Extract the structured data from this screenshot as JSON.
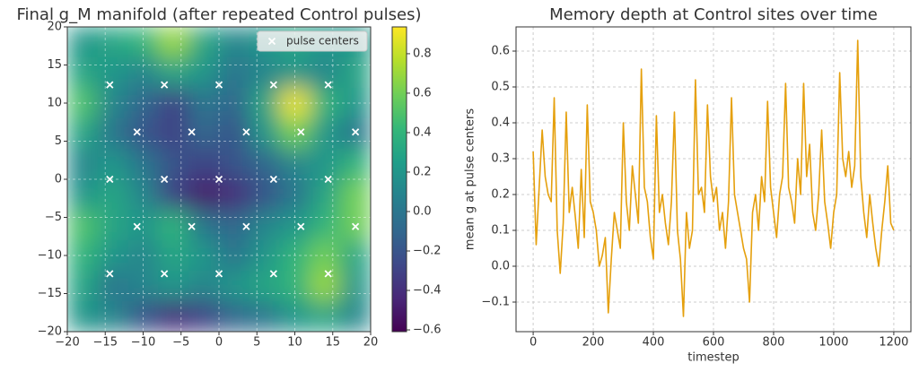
{
  "chart_data": [
    {
      "type": "heatmap",
      "title": "Final g_M manifold (after repeated Control pulses)",
      "z": [
        [
          0.2,
          0.3,
          0.4,
          0.7,
          0.3,
          0.1,
          0.2,
          0.3,
          0.2,
          0.2
        ],
        [
          0.3,
          0.2,
          0.1,
          0.3,
          0.2,
          0.0,
          0.1,
          0.2,
          0.1,
          0.3
        ],
        [
          0.5,
          0.1,
          -0.1,
          -0.3,
          0.0,
          -0.1,
          0.3,
          0.9,
          0.4,
          0.2
        ],
        [
          0.3,
          0.0,
          -0.2,
          -0.3,
          -0.1,
          -0.2,
          0.2,
          0.6,
          0.2,
          0.0
        ],
        [
          0.1,
          0.2,
          0.0,
          -0.2,
          -0.3,
          -0.2,
          -0.1,
          0.1,
          0.2,
          0.4
        ],
        [
          0.2,
          0.3,
          0.1,
          -0.3,
          -0.5,
          -0.4,
          -0.2,
          0.0,
          0.3,
          0.6
        ],
        [
          0.5,
          0.3,
          0.2,
          0.4,
          0.0,
          -0.1,
          0.1,
          0.2,
          0.4,
          0.6
        ],
        [
          0.4,
          0.2,
          0.1,
          0.3,
          0.2,
          0.0,
          0.2,
          0.4,
          0.6,
          0.3
        ],
        [
          0.3,
          0.0,
          0.1,
          0.2,
          0.1,
          0.2,
          0.3,
          0.4,
          0.7,
          0.2
        ],
        [
          0.2,
          0.1,
          -0.2,
          -0.4,
          -0.3,
          -0.1,
          0.0,
          0.2,
          0.3,
          0.1
        ]
      ],
      "xlim": [
        -20,
        20
      ],
      "ylim": [
        -20,
        20
      ],
      "xticks": [
        {
          "value": -20,
          "label": "−20"
        },
        {
          "value": -15,
          "label": "−15"
        },
        {
          "value": -10,
          "label": "−10"
        },
        {
          "value": -5,
          "label": "−5"
        },
        0,
        5,
        10,
        15,
        20
      ],
      "yticks": [
        {
          "value": -20,
          "label": "−20"
        },
        {
          "value": -15,
          "label": "−15"
        },
        {
          "value": -10,
          "label": "−10"
        },
        {
          "value": -5,
          "label": "−5"
        },
        0,
        5,
        10,
        15,
        20
      ],
      "grid": true,
      "colormap": "viridis",
      "clim": [
        -0.609,
        0.936
      ],
      "cticks": [
        {
          "value": -0.6,
          "label": "−0.6"
        },
        {
          "value": -0.4,
          "label": "−0.4"
        },
        {
          "value": -0.2,
          "label": "−0.2"
        },
        {
          "value": 0,
          "label": "0.0"
        },
        0.2,
        0.4,
        0.6,
        0.8
      ],
      "legend": "upper right",
      "series": [
        {
          "name": "pulse centers",
          "type": "scatter",
          "color": "#ffffff",
          "x": [
            -14.4,
            -7.2,
            0,
            7.2,
            14.4,
            -10.8,
            -3.6,
            3.6,
            10.8,
            18,
            -14.4,
            -7.2,
            0,
            7.2,
            14.4,
            -10.8,
            -3.6,
            3.6,
            10.8,
            18,
            -14.4,
            -7.2,
            0,
            7.2,
            14.4
          ],
          "y": [
            12.4,
            12.4,
            12.4,
            12.4,
            12.4,
            6.2,
            6.2,
            6.2,
            6.2,
            6.2,
            0,
            0,
            0,
            0,
            0,
            -6.2,
            -6.2,
            -6.2,
            -6.2,
            -6.2,
            -12.4,
            -12.4,
            -12.4,
            -12.4,
            -12.4
          ]
        }
      ]
    },
    {
      "type": "line",
      "title": "Memory depth at Control sites over time",
      "xlabel": "timestep",
      "ylabel": "mean g at pulse centers",
      "color": "#e5a00d",
      "x": [
        0,
        10,
        20,
        30,
        40,
        50,
        60,
        70,
        80,
        90,
        100,
        110,
        120,
        130,
        140,
        150,
        160,
        170,
        180,
        190,
        200,
        210,
        220,
        230,
        240,
        250,
        260,
        270,
        280,
        290,
        300,
        310,
        320,
        330,
        340,
        350,
        360,
        370,
        380,
        390,
        400,
        410,
        420,
        430,
        440,
        450,
        460,
        470,
        480,
        490,
        500,
        510,
        520,
        530,
        540,
        550,
        560,
        570,
        580,
        590,
        600,
        610,
        620,
        630,
        640,
        650,
        660,
        670,
        680,
        690,
        700,
        710,
        720,
        730,
        740,
        750,
        760,
        770,
        780,
        790,
        800,
        810,
        820,
        830,
        840,
        850,
        860,
        870,
        880,
        890,
        900,
        910,
        920,
        930,
        940,
        950,
        960,
        970,
        980,
        990,
        1000,
        1010,
        1020,
        1030,
        1040,
        1050,
        1060,
        1070,
        1080,
        1090,
        1100,
        1110,
        1120,
        1130,
        1140,
        1150,
        1160,
        1170,
        1180,
        1190,
        1200
      ],
      "values": [
        0.32,
        0.06,
        0.22,
        0.38,
        0.25,
        0.2,
        0.18,
        0.47,
        0.1,
        -0.02,
        0.12,
        0.43,
        0.15,
        0.22,
        0.14,
        0.05,
        0.27,
        0.08,
        0.45,
        0.18,
        0.15,
        0.1,
        0.0,
        0.03,
        0.08,
        -0.13,
        0.02,
        0.15,
        0.1,
        0.05,
        0.4,
        0.18,
        0.1,
        0.28,
        0.2,
        0.12,
        0.55,
        0.22,
        0.18,
        0.08,
        0.02,
        0.42,
        0.15,
        0.2,
        0.12,
        0.06,
        0.18,
        0.43,
        0.1,
        0.02,
        -0.14,
        0.15,
        0.05,
        0.1,
        0.52,
        0.2,
        0.22,
        0.15,
        0.45,
        0.25,
        0.18,
        0.22,
        0.1,
        0.15,
        0.05,
        0.18,
        0.47,
        0.2,
        0.15,
        0.1,
        0.05,
        0.02,
        -0.1,
        0.15,
        0.2,
        0.1,
        0.25,
        0.18,
        0.46,
        0.22,
        0.15,
        0.08,
        0.2,
        0.25,
        0.51,
        0.22,
        0.18,
        0.12,
        0.3,
        0.2,
        0.51,
        0.25,
        0.34,
        0.15,
        0.1,
        0.2,
        0.38,
        0.18,
        0.12,
        0.05,
        0.15,
        0.2,
        0.54,
        0.3,
        0.25,
        0.32,
        0.22,
        0.28,
        0.63,
        0.25,
        0.15,
        0.08,
        0.2,
        0.12,
        0.05,
        0.0,
        0.1,
        0.18,
        0.28,
        0.12,
        0.1
      ],
      "xlim": [
        -57,
        1257
      ],
      "ylim": [
        -0.1825,
        0.6675
      ],
      "xticks": [
        0,
        200,
        400,
        600,
        800,
        1000,
        1200
      ],
      "yticks": [
        {
          "value": -0.1,
          "label": "−0.1"
        },
        {
          "value": 0,
          "label": "0.0"
        },
        0.1,
        0.2,
        0.3,
        0.4,
        0.5,
        0.6
      ],
      "grid": true
    }
  ]
}
